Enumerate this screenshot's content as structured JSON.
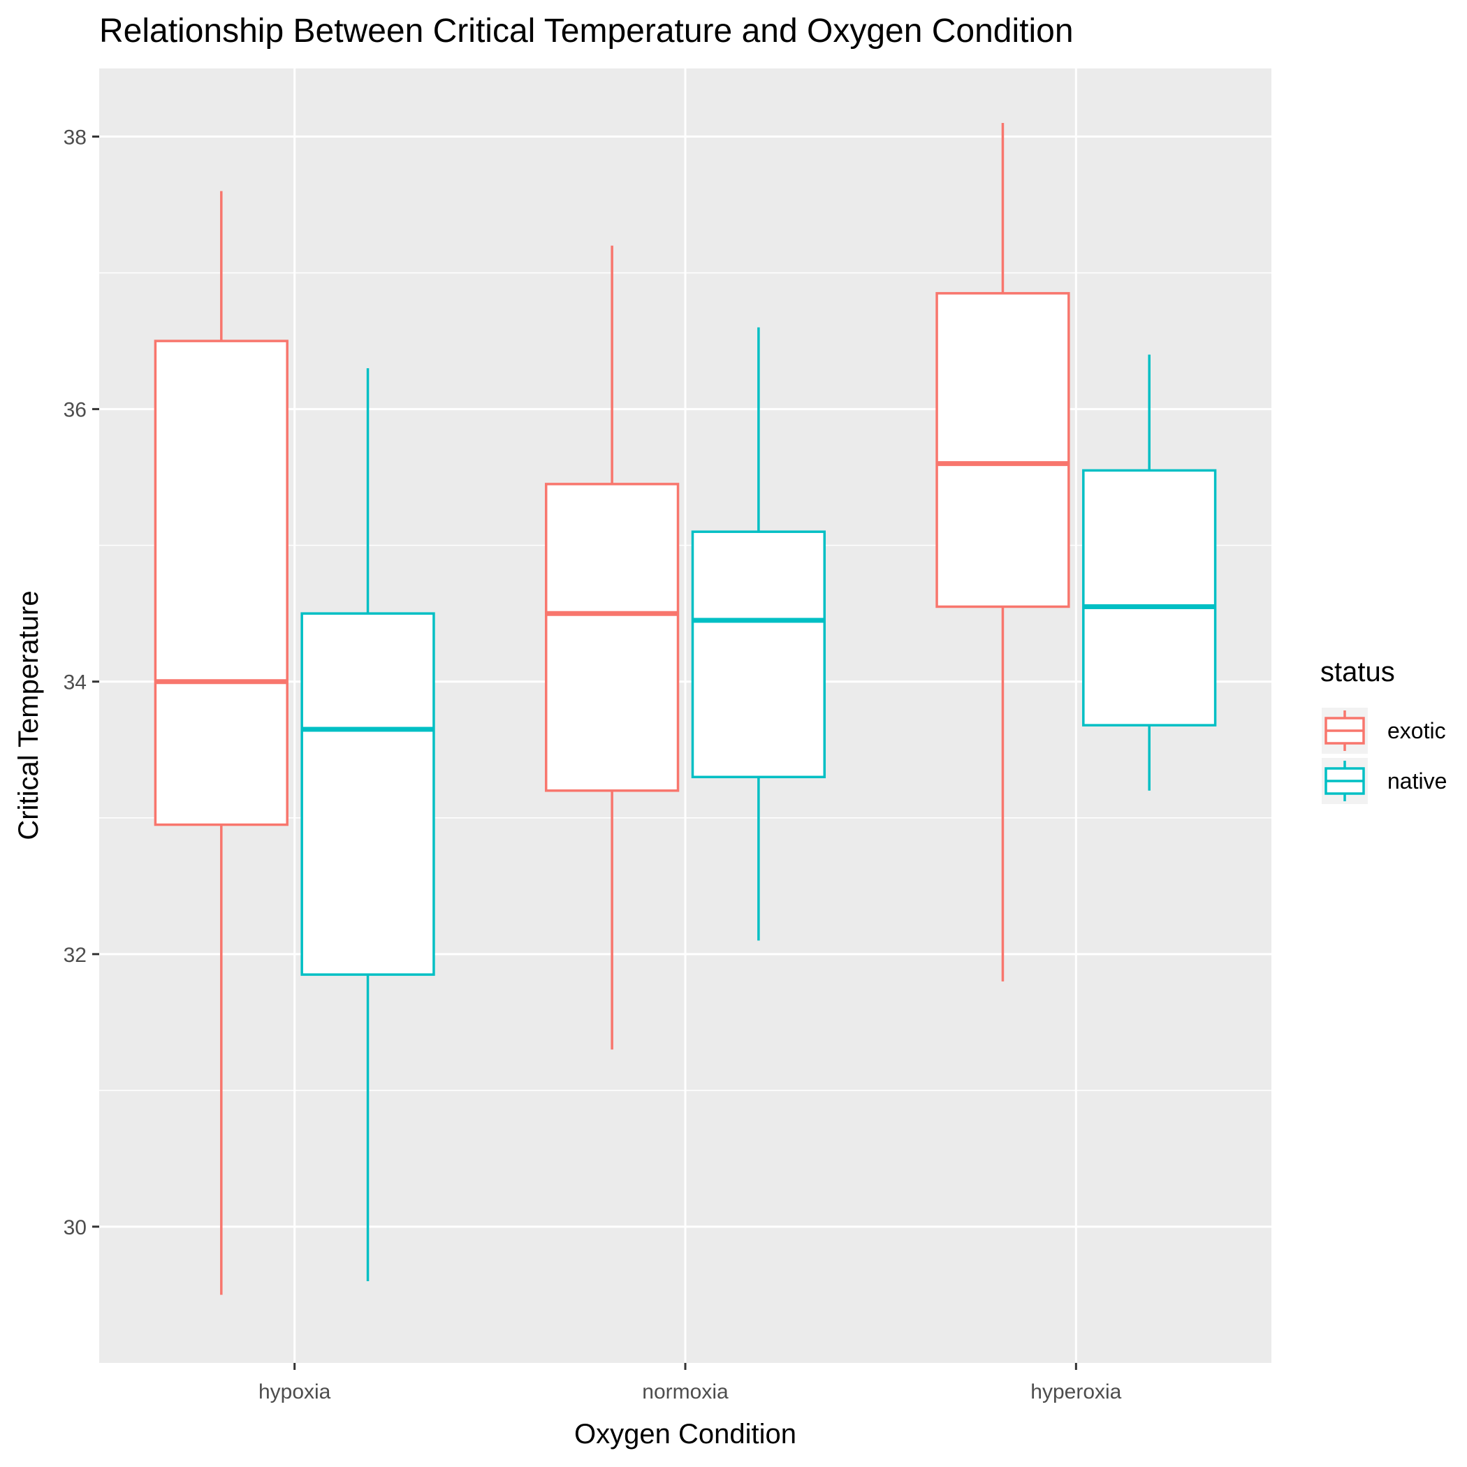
{
  "chart_data": {
    "type": "boxplot",
    "title": "Relationship Between Critical Temperature and Oxygen Condition",
    "xlabel": "Oxygen Condition",
    "ylabel": "Critical Temperature",
    "categories": [
      "hypoxia",
      "normoxia",
      "hyperoxia"
    ],
    "yticks": [
      30,
      32,
      34,
      36,
      38
    ],
    "ylim": [
      29,
      38.5
    ],
    "grid": true,
    "legend": {
      "title": "status",
      "position": "right"
    },
    "series": [
      {
        "name": "exotic",
        "color": "#F8766D",
        "boxes": [
          {
            "category": "hypoxia",
            "min": 29.5,
            "q1": 32.95,
            "median": 34.0,
            "q3": 36.5,
            "max": 37.6
          },
          {
            "category": "normoxia",
            "min": 31.3,
            "q1": 33.2,
            "median": 34.5,
            "q3": 35.45,
            "max": 37.2
          },
          {
            "category": "hyperoxia",
            "min": 31.8,
            "q1": 34.55,
            "median": 35.6,
            "q3": 36.85,
            "max": 38.1
          }
        ]
      },
      {
        "name": "native",
        "color": "#00BFC4",
        "boxes": [
          {
            "category": "hypoxia",
            "min": 29.6,
            "q1": 31.85,
            "median": 33.65,
            "q3": 34.5,
            "max": 36.3
          },
          {
            "category": "normoxia",
            "min": 32.1,
            "q1": 33.3,
            "median": 34.45,
            "q3": 35.1,
            "max": 36.6
          },
          {
            "category": "hyperoxia",
            "min": 33.2,
            "q1": 33.68,
            "median": 34.55,
            "q3": 35.55,
            "max": 36.4
          }
        ]
      }
    ]
  }
}
